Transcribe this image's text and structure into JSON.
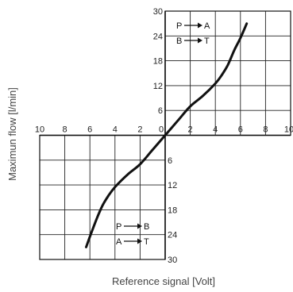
{
  "chart_data": {
    "type": "line",
    "title": "",
    "xlabel": "Reference signal [Volt]",
    "ylabel": "Maximun flow [l/min]",
    "xlim": [
      -10,
      10
    ],
    "ylim": [
      -30,
      30
    ],
    "x_ticks": [
      {
        "value": -10,
        "label": "10"
      },
      {
        "value": -8,
        "label": "8"
      },
      {
        "value": -6,
        "label": "6"
      },
      {
        "value": -4,
        "label": "4"
      },
      {
        "value": -2,
        "label": "2"
      },
      {
        "value": 0,
        "label": "0"
      },
      {
        "value": 2,
        "label": "2"
      },
      {
        "value": 4,
        "label": "4"
      },
      {
        "value": 6,
        "label": "6"
      },
      {
        "value": 8,
        "label": "8"
      },
      {
        "value": 10,
        "label": "10"
      }
    ],
    "y_ticks": [
      {
        "value": 30,
        "label": "30"
      },
      {
        "value": 24,
        "label": "24"
      },
      {
        "value": 18,
        "label": "18"
      },
      {
        "value": 12,
        "label": "12"
      },
      {
        "value": 6,
        "label": "6"
      },
      {
        "value": 0,
        "label": "0"
      },
      {
        "value": -6,
        "label": "6"
      },
      {
        "value": -12,
        "label": "12"
      },
      {
        "value": -18,
        "label": "18"
      },
      {
        "value": -24,
        "label": "24"
      },
      {
        "value": -30,
        "label": "30"
      }
    ],
    "grid": true,
    "series": [
      {
        "x": [
          -6.3,
          -6.0,
          -5.5,
          -5.0,
          -4.5,
          -4.0,
          -3.0,
          -2.0,
          -1.0,
          0,
          1.0,
          2.0,
          3.0,
          4.0,
          4.5,
          5.0,
          5.5,
          6.0,
          6.5
        ],
        "y": [
          -27,
          -24.5,
          -20.5,
          -17,
          -14.5,
          -12.5,
          -9.5,
          -7,
          -3.5,
          0,
          3.5,
          7,
          9.5,
          12.5,
          14.5,
          17,
          20.5,
          23.5,
          27
        ]
      }
    ],
    "legends": [
      {
        "position": "top-right",
        "rows": [
          {
            "from": "P",
            "to": "A"
          },
          {
            "from": "B",
            "to": "T"
          }
        ]
      },
      {
        "position": "bottom-left",
        "rows": [
          {
            "from": "P",
            "to": "B"
          },
          {
            "from": "A",
            "to": "T"
          }
        ]
      }
    ]
  }
}
